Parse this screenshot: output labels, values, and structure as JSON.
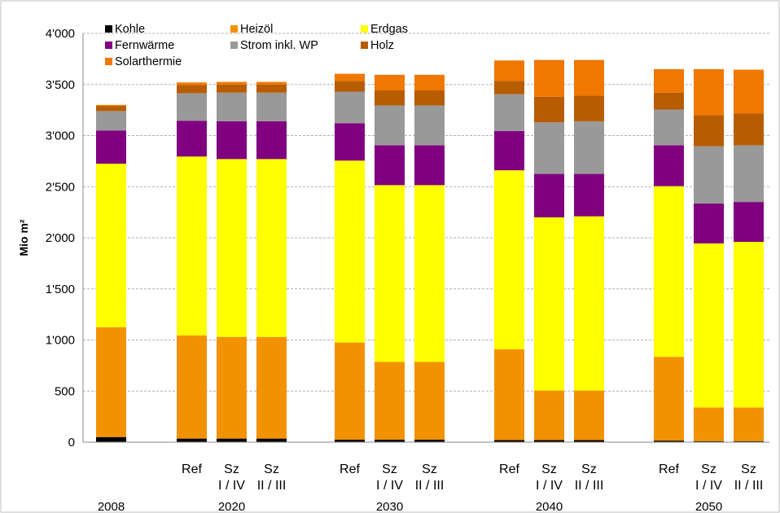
{
  "chart_data": {
    "type": "bar",
    "stacked": true,
    "ylabel": "Mio m²",
    "ylim": [
      0,
      4000
    ],
    "yticks": [
      0,
      500,
      1000,
      1500,
      2000,
      2500,
      3000,
      3500,
      4000
    ],
    "ytick_labels": [
      "0",
      "500",
      "1'000",
      "1'500",
      "2'000",
      "2'500",
      "3'000",
      "3'500",
      "4'000"
    ],
    "grid": "horizontal dashed",
    "legend_placement": "top",
    "groups": [
      {
        "year": "2008",
        "bars": [
          ""
        ]
      },
      {
        "year": "2020",
        "bars": [
          "Ref",
          "Sz\nI / IV",
          "Sz\nII / III"
        ]
      },
      {
        "year": "2030",
        "bars": [
          "Ref",
          "Sz\nI / IV",
          "Sz\nII / III"
        ]
      },
      {
        "year": "2040",
        "bars": [
          "Ref",
          "Sz\nI / IV",
          "Sz\nII / III"
        ]
      },
      {
        "year": "2050",
        "bars": [
          "Ref",
          "Sz\nI / IV",
          "Sz\nII / III"
        ]
      }
    ],
    "series": [
      {
        "name": "Kohle",
        "color": "#000000",
        "values": [
          50,
          35,
          35,
          35,
          25,
          25,
          25,
          20,
          20,
          20,
          15,
          10,
          10
        ]
      },
      {
        "name": "Heizöl",
        "color": "#F39200",
        "values": [
          1075,
          1010,
          995,
          995,
          950,
          760,
          760,
          890,
          485,
          485,
          820,
          330,
          330
        ]
      },
      {
        "name": "Erdgas",
        "color": "#FFFF00",
        "values": [
          1600,
          1750,
          1740,
          1740,
          1780,
          1730,
          1730,
          1750,
          1695,
          1705,
          1670,
          1605,
          1620
        ]
      },
      {
        "name": "Fernwärme",
        "color": "#800080",
        "values": [
          325,
          350,
          370,
          370,
          365,
          390,
          390,
          385,
          425,
          415,
          400,
          390,
          390
        ]
      },
      {
        "name": "Strom inkl. WP",
        "color": "#999999",
        "values": [
          190,
          270,
          280,
          280,
          310,
          390,
          390,
          360,
          505,
          515,
          350,
          560,
          555
        ]
      },
      {
        "name": "Holz",
        "color": "#B85C00",
        "values": [
          50,
          80,
          80,
          80,
          105,
          150,
          150,
          130,
          250,
          250,
          165,
          305,
          310
        ]
      },
      {
        "name": "Solarthermie",
        "color": "#F07800",
        "values": [
          10,
          25,
          25,
          25,
          70,
          150,
          150,
          200,
          360,
          350,
          230,
          450,
          430
        ]
      }
    ]
  }
}
